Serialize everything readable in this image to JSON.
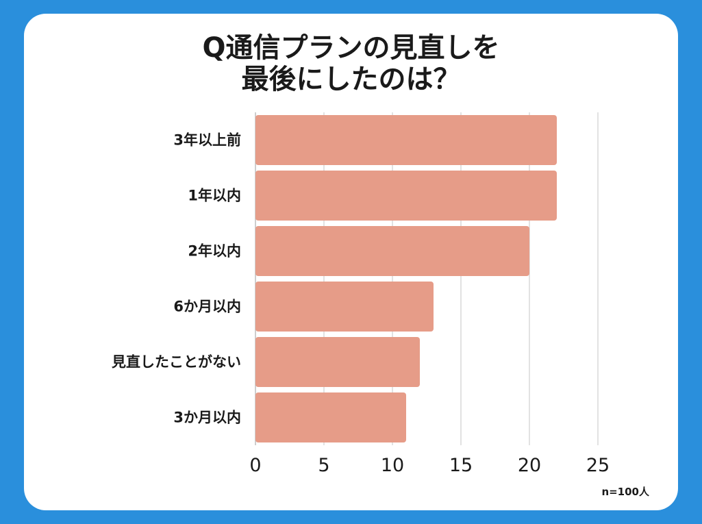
{
  "title_line1": "Q通信プランの見直しを",
  "title_line2": "最後にしたのは？",
  "sample_note": "n=100人",
  "colors": {
    "background": "#2a8fdc",
    "bar": "#e69c88",
    "grid": "#d9d9d9"
  },
  "chart_data": {
    "type": "bar",
    "orientation": "horizontal",
    "categories": [
      "3年以上前",
      "1年以内",
      "2年以内",
      "6か月以内",
      "見直したことがない",
      "3か月以内"
    ],
    "values": [
      22,
      22,
      20,
      13,
      12,
      11
    ],
    "xlim": [
      0,
      25
    ],
    "xticks": [
      0,
      5,
      10,
      15,
      20,
      25
    ],
    "grid": "vertical"
  }
}
